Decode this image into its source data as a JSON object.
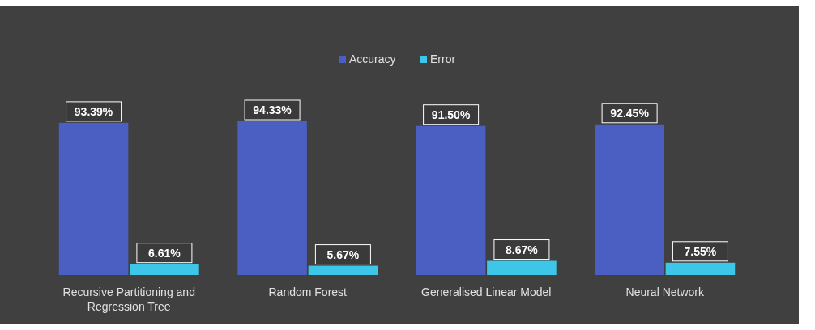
{
  "chart_data": {
    "type": "bar",
    "categories": [
      "Recursive Partitioning and Regression Tree",
      "Random Forest",
      "Generalised Linear Model",
      "Neural Network"
    ],
    "series": [
      {
        "name": "Accuracy",
        "color": "#4a5fc1",
        "values": [
          93.39,
          94.33,
          91.5,
          92.45
        ],
        "value_labels": [
          "93.39%",
          "94.33%",
          "91.50%",
          "92.45%"
        ]
      },
      {
        "name": "Error",
        "color": "#3ec6e8",
        "values": [
          6.61,
          5.67,
          8.67,
          7.55
        ],
        "value_labels": [
          "6.61%",
          "5.67%",
          "8.67%",
          "7.55%"
        ]
      }
    ],
    "legend": "top"
  }
}
